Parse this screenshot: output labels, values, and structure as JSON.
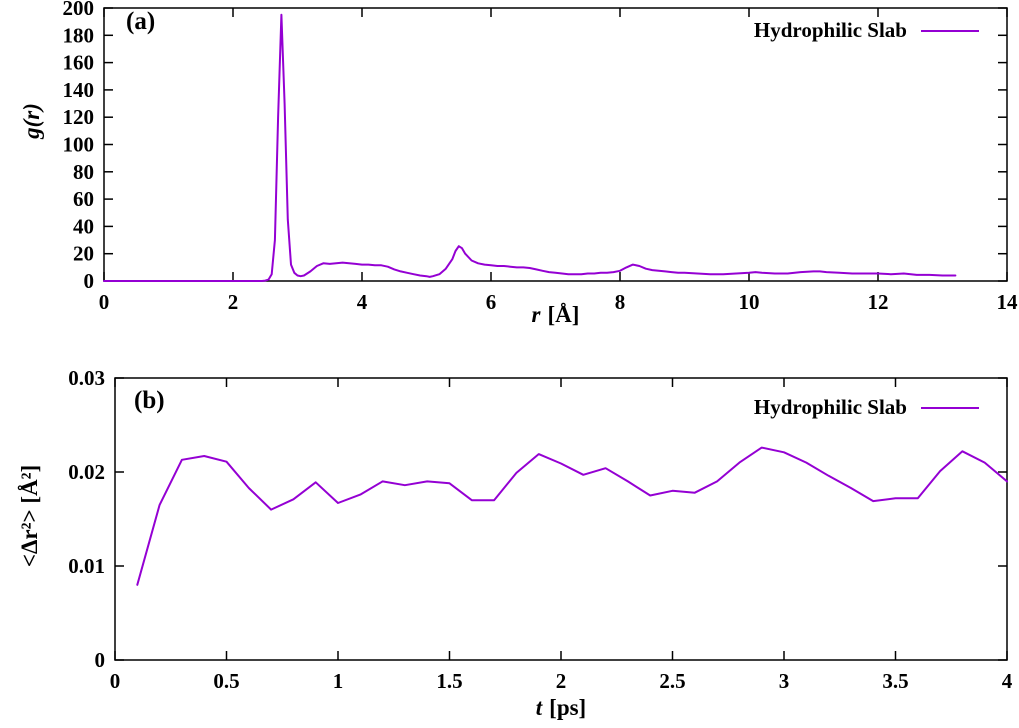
{
  "figure": {
    "background": "#ffffff",
    "panels": [
      "(a)",
      "(b)"
    ]
  },
  "chart_data": [
    {
      "type": "line",
      "panel_label": "(a)",
      "legend": "Hydrophilic Slab",
      "legend_position": "top-right",
      "color": "#9400d3",
      "xlabel_var": "r",
      "xlabel_unit": "[Å]",
      "ylabel": "g(r)",
      "xlim": [
        0,
        14
      ],
      "ylim": [
        0,
        200
      ],
      "xticks": [
        0,
        2,
        4,
        6,
        8,
        10,
        12,
        14
      ],
      "xtick_labels": [
        "0",
        "2",
        "4",
        "6",
        "8",
        "10",
        "12",
        "14"
      ],
      "yticks": [
        0,
        20,
        40,
        60,
        80,
        100,
        120,
        140,
        160,
        180,
        200
      ],
      "ytick_labels": [
        "0",
        "20",
        "40",
        "60",
        "80",
        "100",
        "120",
        "140",
        "160",
        "180",
        "200"
      ],
      "grid": false,
      "series": [
        {
          "name": "Hydrophilic Slab",
          "points": [
            [
              0,
              0
            ],
            [
              0.5,
              0
            ],
            [
              1.0,
              0
            ],
            [
              1.5,
              0
            ],
            [
              2.0,
              0
            ],
            [
              2.3,
              0
            ],
            [
              2.45,
              0
            ],
            [
              2.5,
              0.3
            ],
            [
              2.55,
              1
            ],
            [
              2.6,
              5
            ],
            [
              2.65,
              30
            ],
            [
              2.7,
              120
            ],
            [
              2.75,
              195
            ],
            [
              2.8,
              130
            ],
            [
              2.85,
              45
            ],
            [
              2.9,
              12
            ],
            [
              2.95,
              6
            ],
            [
              3.0,
              4
            ],
            [
              3.05,
              3.5
            ],
            [
              3.1,
              4
            ],
            [
              3.2,
              7
            ],
            [
              3.3,
              11
            ],
            [
              3.4,
              13
            ],
            [
              3.5,
              12.5
            ],
            [
              3.6,
              13
            ],
            [
              3.7,
              13.5
            ],
            [
              3.8,
              13
            ],
            [
              3.9,
              12.5
            ],
            [
              4.0,
              12
            ],
            [
              4.1,
              12
            ],
            [
              4.2,
              11.5
            ],
            [
              4.3,
              11.5
            ],
            [
              4.4,
              10.5
            ],
            [
              4.5,
              8.5
            ],
            [
              4.6,
              7
            ],
            [
              4.7,
              6
            ],
            [
              4.8,
              5
            ],
            [
              4.9,
              4
            ],
            [
              5.0,
              3.5
            ],
            [
              5.05,
              3
            ],
            [
              5.1,
              3.5
            ],
            [
              5.2,
              5
            ],
            [
              5.3,
              9
            ],
            [
              5.4,
              16
            ],
            [
              5.45,
              22
            ],
            [
              5.5,
              25.5
            ],
            [
              5.55,
              24
            ],
            [
              5.6,
              20
            ],
            [
              5.7,
              15
            ],
            [
              5.8,
              13
            ],
            [
              5.9,
              12
            ],
            [
              6.0,
              11.5
            ],
            [
              6.1,
              11
            ],
            [
              6.2,
              11
            ],
            [
              6.3,
              10.5
            ],
            [
              6.4,
              10
            ],
            [
              6.5,
              10
            ],
            [
              6.6,
              9.5
            ],
            [
              6.7,
              8.5
            ],
            [
              6.8,
              7.5
            ],
            [
              6.9,
              6.5
            ],
            [
              7.0,
              6
            ],
            [
              7.1,
              5.5
            ],
            [
              7.2,
              5
            ],
            [
              7.3,
              5
            ],
            [
              7.4,
              5
            ],
            [
              7.5,
              5.5
            ],
            [
              7.6,
              5.5
            ],
            [
              7.7,
              6
            ],
            [
              7.8,
              6
            ],
            [
              7.9,
              6.5
            ],
            [
              8.0,
              7.5
            ],
            [
              8.1,
              10
            ],
            [
              8.2,
              12
            ],
            [
              8.3,
              11
            ],
            [
              8.4,
              9
            ],
            [
              8.5,
              8
            ],
            [
              8.6,
              7.5
            ],
            [
              8.7,
              7
            ],
            [
              8.8,
              6.5
            ],
            [
              8.9,
              6
            ],
            [
              9.0,
              6
            ],
            [
              9.2,
              5.5
            ],
            [
              9.4,
              5
            ],
            [
              9.6,
              5
            ],
            [
              9.8,
              5.5
            ],
            [
              10.0,
              6
            ],
            [
              10.1,
              6.5
            ],
            [
              10.2,
              6
            ],
            [
              10.4,
              5.5
            ],
            [
              10.6,
              5.5
            ],
            [
              10.8,
              6.5
            ],
            [
              11.0,
              7
            ],
            [
              11.1,
              7
            ],
            [
              11.2,
              6.5
            ],
            [
              11.4,
              6
            ],
            [
              11.6,
              5.5
            ],
            [
              11.8,
              5.5
            ],
            [
              12.0,
              5.5
            ],
            [
              12.2,
              5
            ],
            [
              12.4,
              5.5
            ],
            [
              12.6,
              4.5
            ],
            [
              12.8,
              4.5
            ],
            [
              13.0,
              4
            ],
            [
              13.2,
              4
            ]
          ]
        }
      ]
    },
    {
      "type": "line",
      "panel_label": "(b)",
      "legend": "Hydrophilic Slab",
      "legend_position": "top-right",
      "color": "#9400d3",
      "xlabel_var": "t",
      "xlabel_unit": "[ps]",
      "ylabel": "<Δr²> [Å²]",
      "xlim": [
        0,
        4
      ],
      "ylim": [
        0,
        0.03
      ],
      "xticks": [
        0,
        0.5,
        1,
        1.5,
        2,
        2.5,
        3,
        3.5,
        4
      ],
      "xtick_labels": [
        "0",
        "0.5",
        "1",
        "1.5",
        "2",
        "2.5",
        "3",
        "3.5",
        "4"
      ],
      "yticks": [
        0,
        0.01,
        0.02,
        0.03
      ],
      "ytick_labels": [
        "0",
        "0.01",
        "0.02",
        "0.03"
      ],
      "grid": false,
      "series": [
        {
          "name": "Hydrophilic Slab",
          "points": [
            [
              0.1,
              0.008
            ],
            [
              0.2,
              0.0165
            ],
            [
              0.3,
              0.0213
            ],
            [
              0.4,
              0.0217
            ],
            [
              0.5,
              0.0211
            ],
            [
              0.6,
              0.0183
            ],
            [
              0.7,
              0.016
            ],
            [
              0.8,
              0.0171
            ],
            [
              0.9,
              0.0189
            ],
            [
              1.0,
              0.0167
            ],
            [
              1.1,
              0.0176
            ],
            [
              1.2,
              0.019
            ],
            [
              1.3,
              0.0186
            ],
            [
              1.4,
              0.019
            ],
            [
              1.5,
              0.0188
            ],
            [
              1.6,
              0.017
            ],
            [
              1.7,
              0.017
            ],
            [
              1.8,
              0.0199
            ],
            [
              1.9,
              0.0219
            ],
            [
              2.0,
              0.0209
            ],
            [
              2.1,
              0.0197
            ],
            [
              2.2,
              0.0204
            ],
            [
              2.3,
              0.019
            ],
            [
              2.4,
              0.0175
            ],
            [
              2.5,
              0.018
            ],
            [
              2.6,
              0.0178
            ],
            [
              2.7,
              0.019
            ],
            [
              2.8,
              0.021
            ],
            [
              2.9,
              0.0226
            ],
            [
              3.0,
              0.0221
            ],
            [
              3.1,
              0.021
            ],
            [
              3.2,
              0.0196
            ],
            [
              3.3,
              0.0183
            ],
            [
              3.4,
              0.0169
            ],
            [
              3.5,
              0.0172
            ],
            [
              3.6,
              0.0172
            ],
            [
              3.7,
              0.0201
            ],
            [
              3.8,
              0.0222
            ],
            [
              3.9,
              0.021
            ],
            [
              4.0,
              0.019
            ]
          ]
        }
      ]
    }
  ]
}
